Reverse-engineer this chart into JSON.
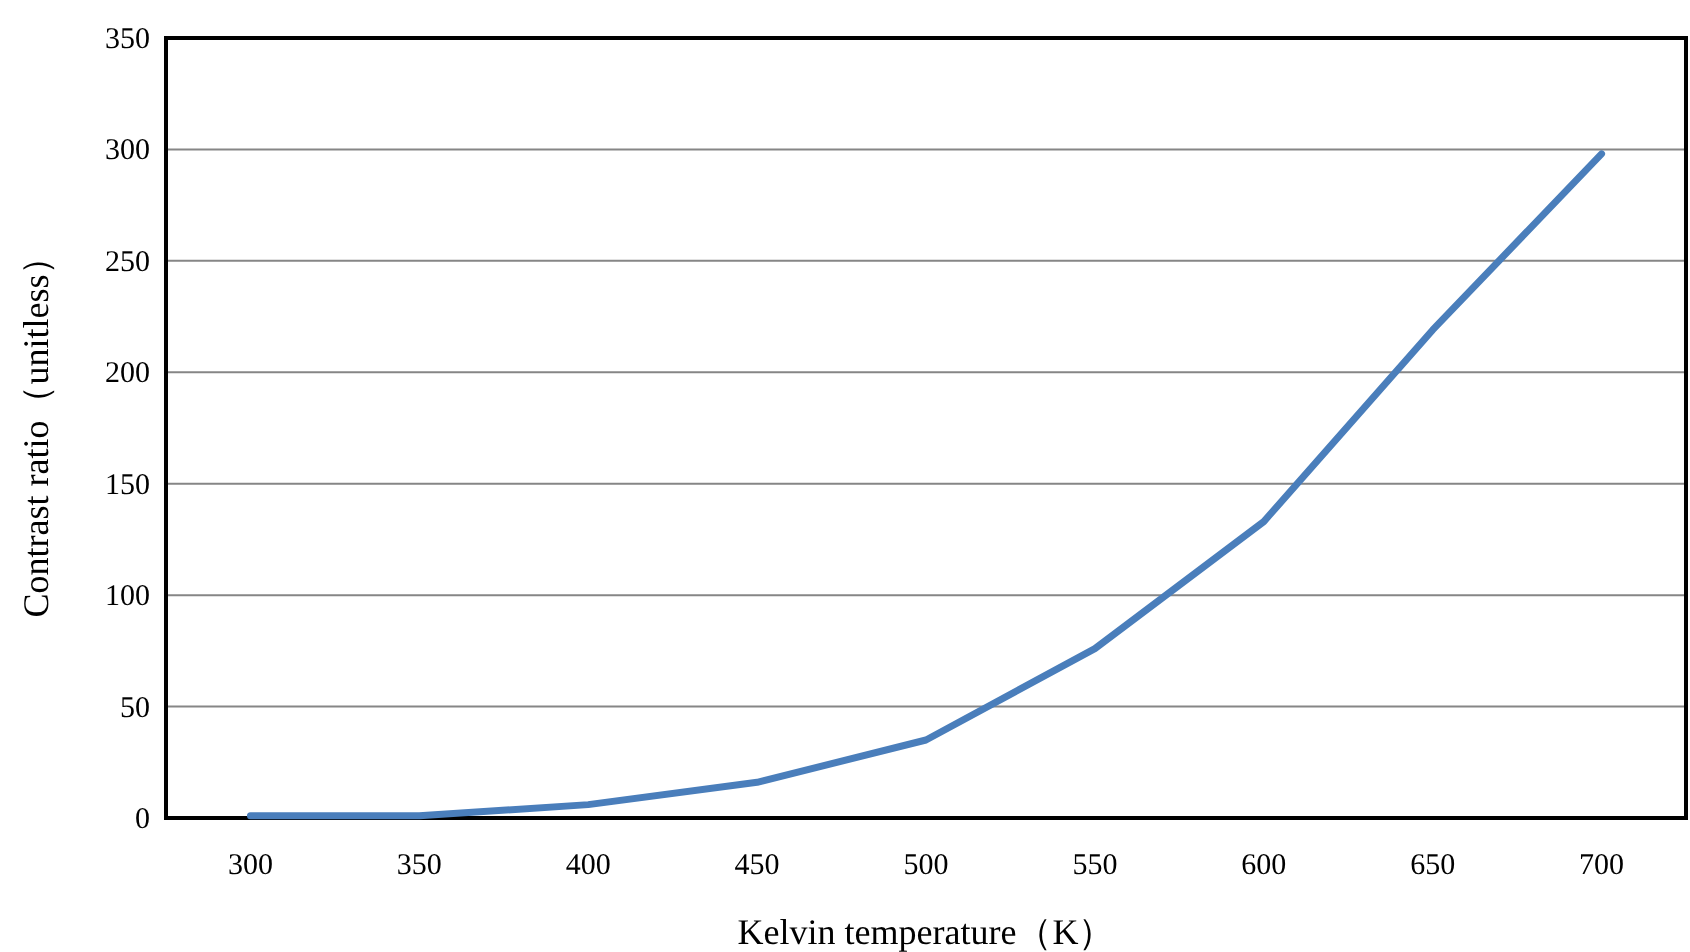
{
  "chart_data": {
    "type": "line",
    "xlabel": "Kelvin temperature（K）",
    "ylabel": "Contrast ratio（unitless）",
    "categories": [
      "300",
      "350",
      "400",
      "450",
      "500",
      "550",
      "600",
      "650",
      "700"
    ],
    "series": [
      {
        "color": "#4a7ebb",
        "values": [
          1,
          1,
          6,
          16,
          35,
          76,
          133,
          219,
          298
        ]
      }
    ],
    "ylim": [
      0,
      350
    ],
    "yticks": [
      0,
      50,
      100,
      150,
      200,
      250,
      300,
      350
    ],
    "grid": "y",
    "marker": "none",
    "line_style": "solid"
  }
}
